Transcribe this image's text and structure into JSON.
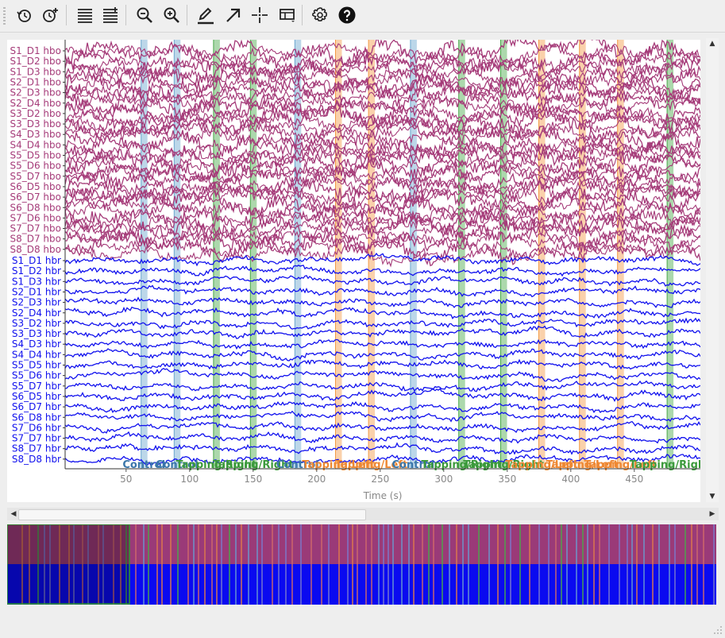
{
  "toolbar": {
    "buttons": [
      {
        "name": "history-back-button",
        "icon": "clock-back-icon"
      },
      {
        "name": "history-forward-button",
        "icon": "clock-plus-icon"
      },
      {
        "name": "fewer-channels-button",
        "icon": "lines-minus-icon"
      },
      {
        "name": "more-channels-button",
        "icon": "lines-plus-icon"
      },
      {
        "name": "zoom-out-button",
        "icon": "zoom-out-icon"
      },
      {
        "name": "zoom-in-button",
        "icon": "zoom-in-icon"
      },
      {
        "name": "annotate-button",
        "icon": "pen-icon"
      },
      {
        "name": "select-button",
        "icon": "arrow-icon"
      },
      {
        "name": "crosshair-button",
        "icon": "crosshair-icon"
      },
      {
        "name": "projector-button",
        "icon": "projector-icon"
      },
      {
        "name": "settings-button",
        "icon": "gear-icon"
      },
      {
        "name": "help-button",
        "icon": "help-icon"
      }
    ]
  },
  "colors": {
    "hbo": "#a53b79",
    "hbr": "#1111ee",
    "control": "#6ba7cf",
    "tapping_left": "#f39a44",
    "tapping_right": "#48a848",
    "control_label": "#3a76aa",
    "left_label": "#ee8833",
    "right_label": "#3c9a3c"
  },
  "channels": {
    "hbo": [
      "S1_D1 hbo",
      "S1_D2 hbo",
      "S1_D3 hbo",
      "S2_D1 hbo",
      "S2_D3 hbo",
      "S2_D4 hbo",
      "S3_D2 hbo",
      "S3_D3 hbo",
      "S4_D3 hbo",
      "S4_D4 hbo",
      "S5_D5 hbo",
      "S5_D6 hbo",
      "S5_D7 hbo",
      "S6_D5 hbo",
      "S6_D7 hbo",
      "S6_D8 hbo",
      "S7_D6 hbo",
      "S7_D7 hbo",
      "S8_D7 hbo",
      "S8_D8 hbo"
    ],
    "hbr": [
      "S1_D1 hbr",
      "S1_D2 hbr",
      "S1_D3 hbr",
      "S2_D1 hbr",
      "S2_D3 hbr",
      "S2_D4 hbr",
      "S3_D2 hbr",
      "S3_D3 hbr",
      "S4_D3 hbr",
      "S4_D4 hbr",
      "S5_D5 hbr",
      "S5_D6 hbr",
      "S5_D7 hbr",
      "S6_D5 hbr",
      "S6_D7 hbr",
      "S6_D8 hbr",
      "S7_D6 hbr",
      "S7_D7 hbr",
      "S8_D7 hbr",
      "S8_D8 hbr"
    ]
  },
  "axis": {
    "xlabel": "Time (s)",
    "ticks": [
      50,
      100,
      150,
      200,
      250,
      300,
      350,
      400,
      450
    ],
    "xlim": [
      2,
      502
    ]
  },
  "annotations": [
    {
      "t": 64,
      "type": "control",
      "label": "Control"
    },
    {
      "t": 90,
      "type": "control",
      "label": "Control"
    },
    {
      "t": 121,
      "type": "right",
      "label": "Tapping/Right"
    },
    {
      "t": 150,
      "type": "right",
      "label": "Tapping/Right"
    },
    {
      "t": 185,
      "type": "control",
      "label": "Control"
    },
    {
      "t": 217,
      "type": "left",
      "label": "Tapping/Left"
    },
    {
      "t": 243,
      "type": "left",
      "label": "Tapping/Left"
    },
    {
      "t": 276,
      "type": "control",
      "label": "Control"
    },
    {
      "t": 314,
      "type": "right",
      "label": "Tapping/Right"
    },
    {
      "t": 347,
      "type": "right",
      "label": "Tapping/Right"
    },
    {
      "t": 377,
      "type": "left",
      "label": "Tapping/Left"
    },
    {
      "t": 409,
      "type": "left",
      "label": "Tapping/Left"
    },
    {
      "t": 439,
      "type": "left",
      "label": "Tapping/Left"
    },
    {
      "t": 478,
      "type": "right",
      "label": "Tapping/Right"
    }
  ]
}
